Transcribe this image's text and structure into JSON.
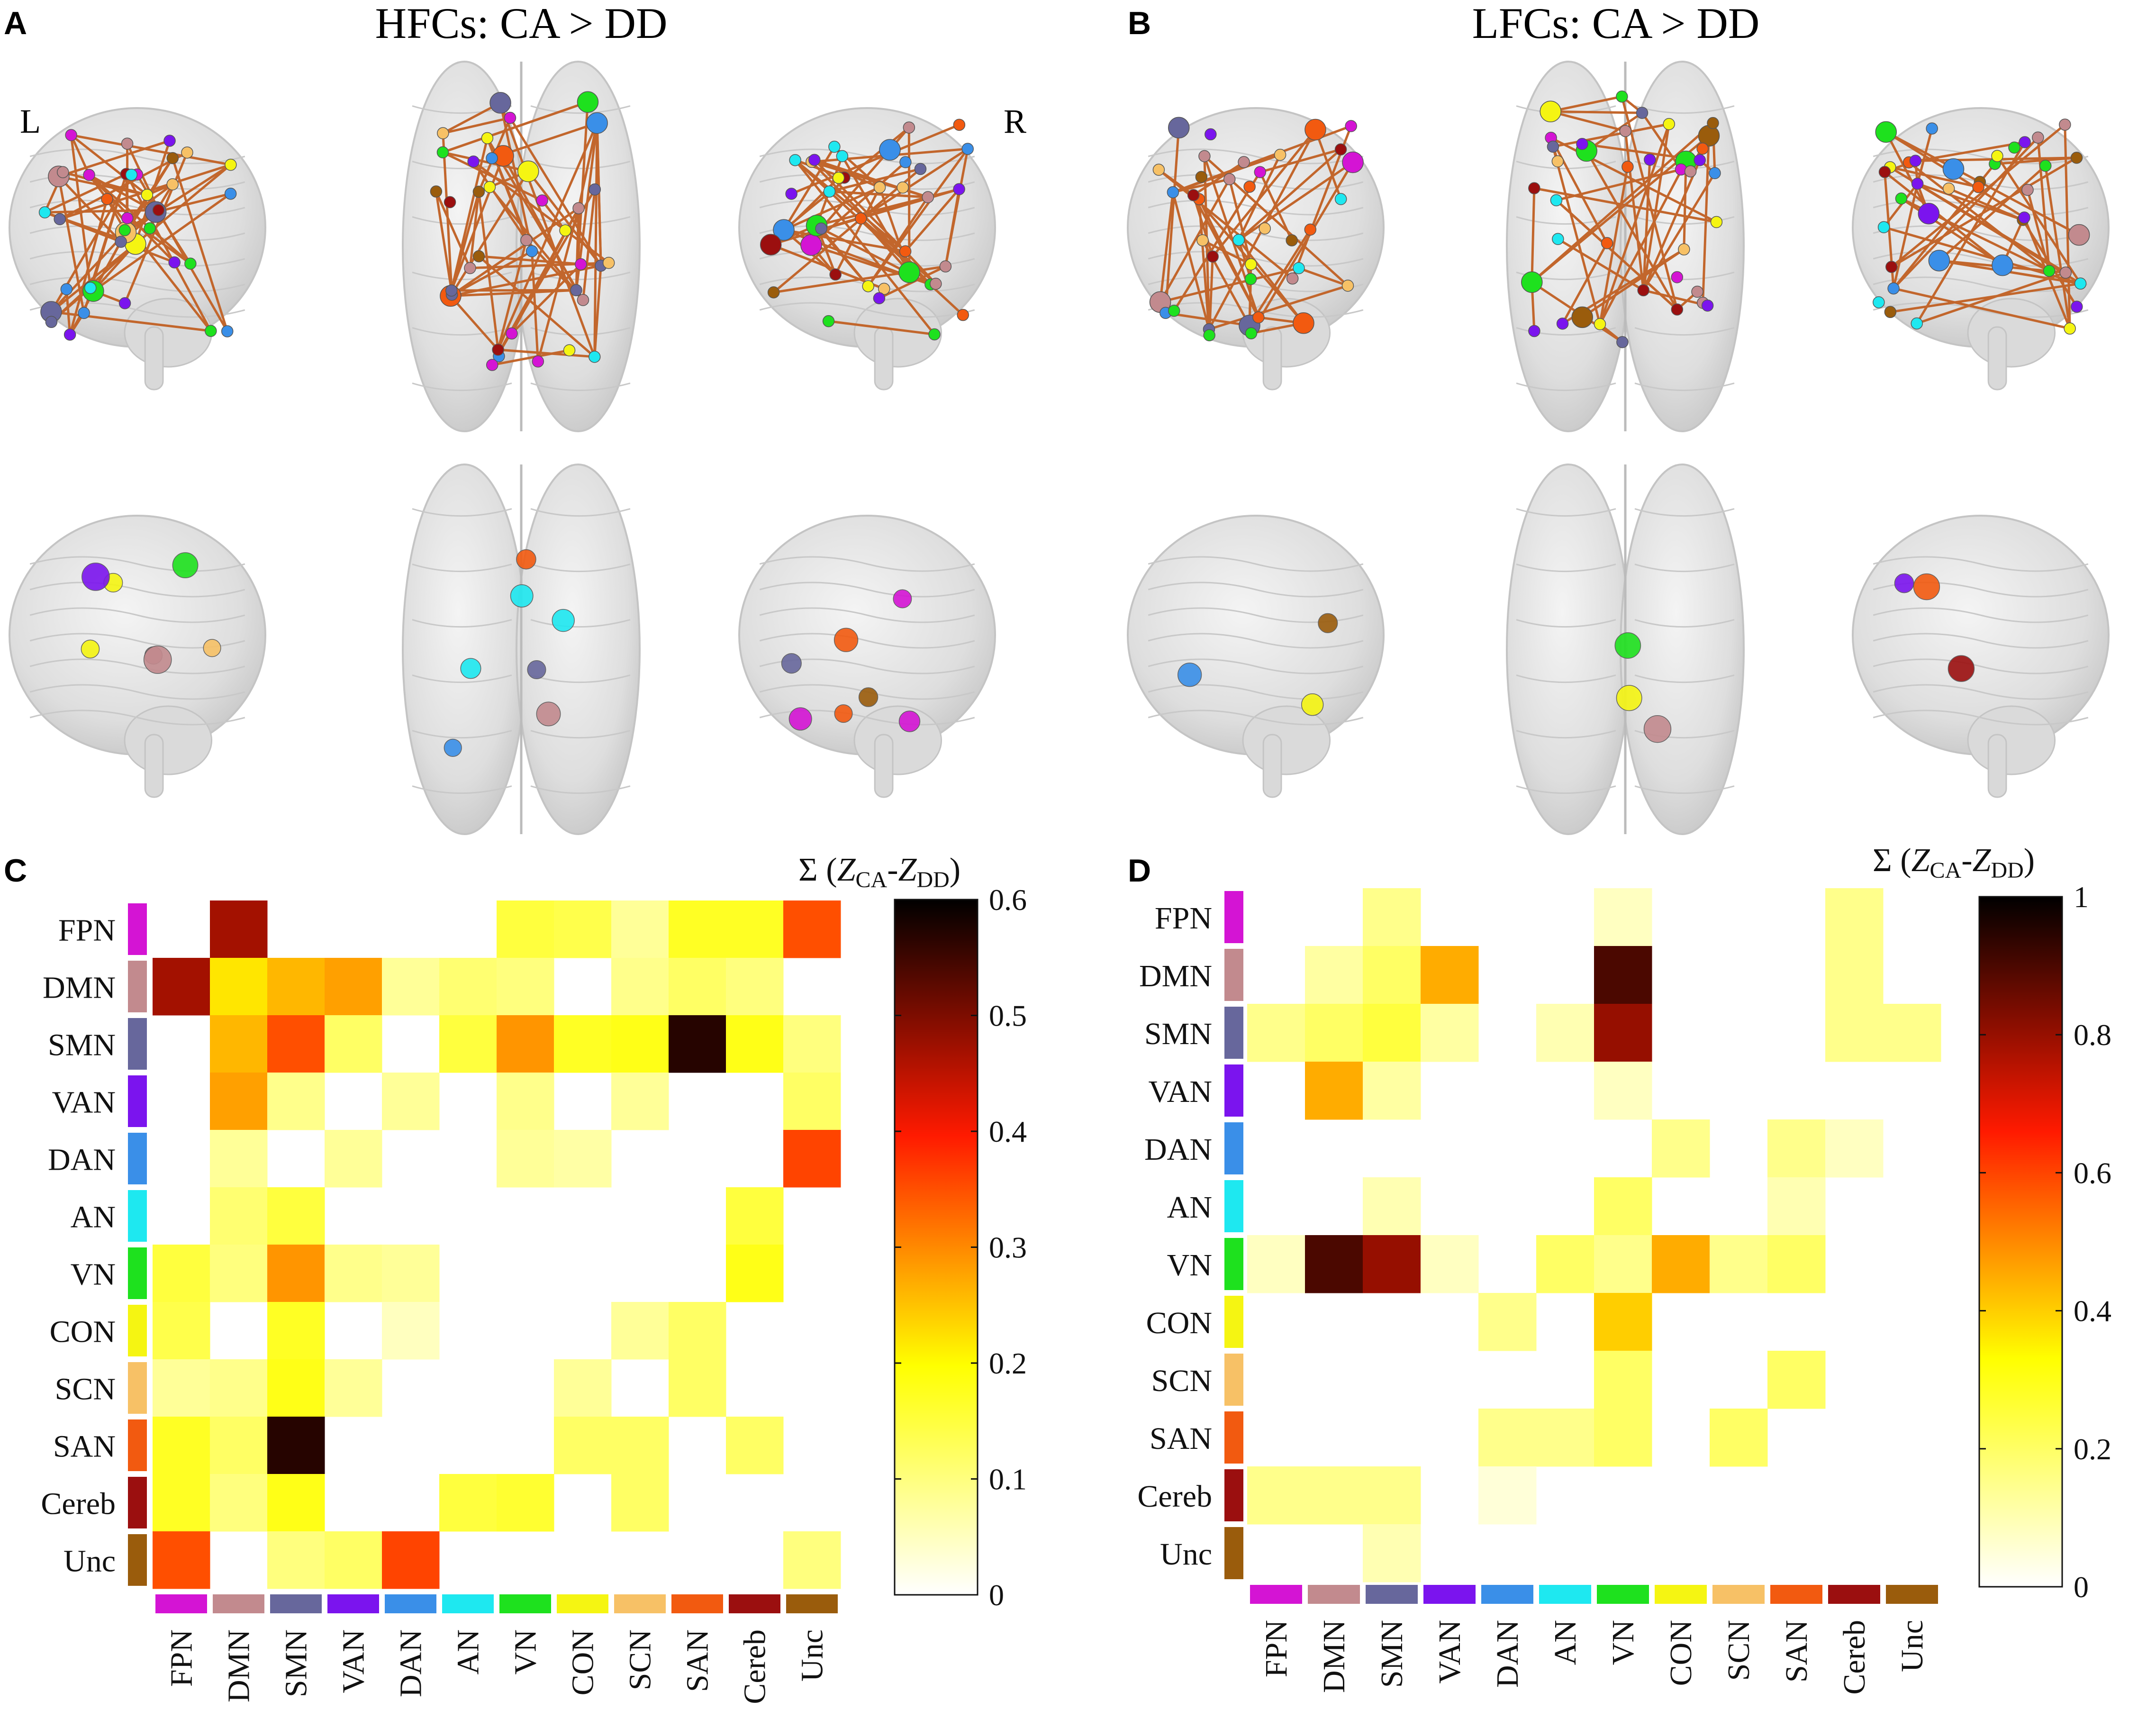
{
  "panels": {
    "A": {
      "letter": "A",
      "title": "HFCs: CA > DD",
      "left_label": "L",
      "right_label": "R"
    },
    "B": {
      "letter": "B",
      "title": "LFCs: CA > DD"
    },
    "C": {
      "letter": "C"
    },
    "D": {
      "letter": "D"
    }
  },
  "network_colors": {
    "FPN": "#d414d4",
    "DMN": "#c28a8e",
    "SMN": "#67679c",
    "VAN": "#7b14ee",
    "DAN": "#3a8fe8",
    "AN": "#1ee8f0",
    "VN": "#1ee11e",
    "CON": "#f5f512",
    "SCN": "#f7c166",
    "SAN": "#f25a10",
    "Cereb": "#9b0f0f",
    "Unc": "#9a5c0c"
  },
  "chart_data": [
    {
      "id": "C",
      "type": "heatmap",
      "title": "",
      "colorbar_label": "Σ (Z_CA-Z_DD)",
      "colorbar_label_parts": {
        "sigma": "Σ (",
        "z1": "Z",
        "sub1": "CA",
        "dash": "-",
        "z2": "Z",
        "sub2": "DD",
        "close": ")"
      },
      "colormap": "hot_reversed",
      "vmin": 0,
      "vmax": 0.6,
      "colorbar_ticks": [
        "0",
        "0.1",
        "0.2",
        "0.3",
        "0.4",
        "0.5",
        "0.6"
      ],
      "colorbar_tick_values": [
        0,
        0.1,
        0.2,
        0.3,
        0.4,
        0.5,
        0.6
      ],
      "rows": [
        "FPN",
        "DMN",
        "SMN",
        "VAN",
        "DAN",
        "AN",
        "VN",
        "CON",
        "SCN",
        "SAN",
        "Cereb",
        "Unc"
      ],
      "cols": [
        "FPN",
        "DMN",
        "SMN",
        "VAN",
        "DAN",
        "AN",
        "VN",
        "CON",
        "SCN",
        "SAN",
        "Cereb",
        "Unc"
      ],
      "values": [
        [
          0,
          0.47,
          0,
          0,
          0,
          0,
          0.15,
          0.14,
          0.08,
          0.17,
          0.17,
          0.35
        ],
        [
          0.47,
          0.22,
          0.26,
          0.28,
          0.08,
          0.11,
          0.1,
          0,
          0.09,
          0.12,
          0.1,
          0
        ],
        [
          0,
          0.26,
          0.35,
          0.12,
          0,
          0.15,
          0.29,
          0.17,
          0.18,
          0.57,
          0.18,
          0.1
        ],
        [
          0,
          0.28,
          0.09,
          0,
          0.08,
          0,
          0.09,
          0,
          0.08,
          0,
          0,
          0.12
        ],
        [
          0,
          0.08,
          0,
          0.08,
          0,
          0,
          0.08,
          0.07,
          0,
          0,
          0,
          0.36
        ],
        [
          0,
          0.11,
          0.15,
          0,
          0,
          0,
          0,
          0,
          0,
          0,
          0.15,
          0
        ],
        [
          0.15,
          0.1,
          0.29,
          0.09,
          0.08,
          0,
          0,
          0,
          0,
          0,
          0.18,
          0
        ],
        [
          0.14,
          0,
          0.17,
          0,
          0.05,
          0,
          0,
          0,
          0.08,
          0.12,
          0,
          0
        ],
        [
          0.08,
          0.09,
          0.18,
          0.08,
          0,
          0,
          0,
          0.08,
          0,
          0.12,
          0,
          0
        ],
        [
          0.17,
          0.12,
          0.57,
          0,
          0,
          0,
          0,
          0.12,
          0.12,
          0,
          0.12,
          0
        ],
        [
          0.17,
          0.1,
          0.18,
          0,
          0,
          0.15,
          0.16,
          0,
          0.12,
          0,
          0,
          0
        ],
        [
          0.35,
          0,
          0.1,
          0.12,
          0.36,
          0,
          0,
          0,
          0,
          0,
          0,
          0.1
        ]
      ]
    },
    {
      "id": "D",
      "type": "heatmap",
      "title": "",
      "colorbar_label": "Σ (Z_CA-Z_DD)",
      "colorbar_label_parts": {
        "sigma": "Σ (",
        "z1": "Z",
        "sub1": "CA",
        "dash": "-",
        "z2": "Z",
        "sub2": "DD",
        "close": ")"
      },
      "colormap": "hot_reversed",
      "vmin": 0,
      "vmax": 1,
      "colorbar_ticks": [
        "0",
        "0.2",
        "0.4",
        "0.6",
        "0.8",
        "1"
      ],
      "colorbar_tick_values": [
        0,
        0.2,
        0.4,
        0.6,
        0.8,
        1
      ],
      "rows": [
        "FPN",
        "DMN",
        "SMN",
        "VAN",
        "DAN",
        "AN",
        "VN",
        "CON",
        "SCN",
        "SAN",
        "Cereb",
        "Unc"
      ],
      "cols": [
        "FPN",
        "DMN",
        "SMN",
        "VAN",
        "DAN",
        "AN",
        "VN",
        "CON",
        "SCN",
        "SAN",
        "Cereb",
        "Unc"
      ],
      "values": [
        [
          0,
          0,
          0.15,
          0,
          0,
          0,
          0.08,
          0,
          0,
          0,
          0.15,
          0
        ],
        [
          0,
          0.12,
          0.2,
          0.45,
          0,
          0,
          0.9,
          0,
          0,
          0,
          0.15,
          0
        ],
        [
          0.15,
          0.2,
          0.25,
          0.12,
          0,
          0.1,
          0.8,
          0,
          0,
          0,
          0.15,
          0.15
        ],
        [
          0,
          0.45,
          0.12,
          0,
          0,
          0,
          0.08,
          0,
          0,
          0,
          0,
          0
        ],
        [
          0,
          0,
          0,
          0,
          0,
          0,
          0,
          0.15,
          0,
          0.15,
          0.08,
          0
        ],
        [
          0,
          0,
          0.1,
          0,
          0,
          0,
          0.2,
          0,
          0,
          0.1,
          0,
          0
        ],
        [
          0.08,
          0.9,
          0.8,
          0.08,
          0,
          0.2,
          0.15,
          0.45,
          0.15,
          0.2,
          0,
          0
        ],
        [
          0,
          0,
          0,
          0,
          0.15,
          0,
          0.4,
          0,
          0,
          0,
          0,
          0
        ],
        [
          0,
          0,
          0,
          0,
          0,
          0,
          0.2,
          0,
          0,
          0.2,
          0,
          0
        ],
        [
          0,
          0,
          0,
          0,
          0.15,
          0.15,
          0.2,
          0,
          0.2,
          0,
          0,
          0
        ],
        [
          0.15,
          0.15,
          0.15,
          0,
          0.05,
          0,
          0,
          0,
          0,
          0,
          0,
          0
        ],
        [
          0,
          0,
          0.1,
          0,
          0,
          0,
          0,
          0,
          0,
          0,
          0,
          0
        ]
      ]
    }
  ]
}
